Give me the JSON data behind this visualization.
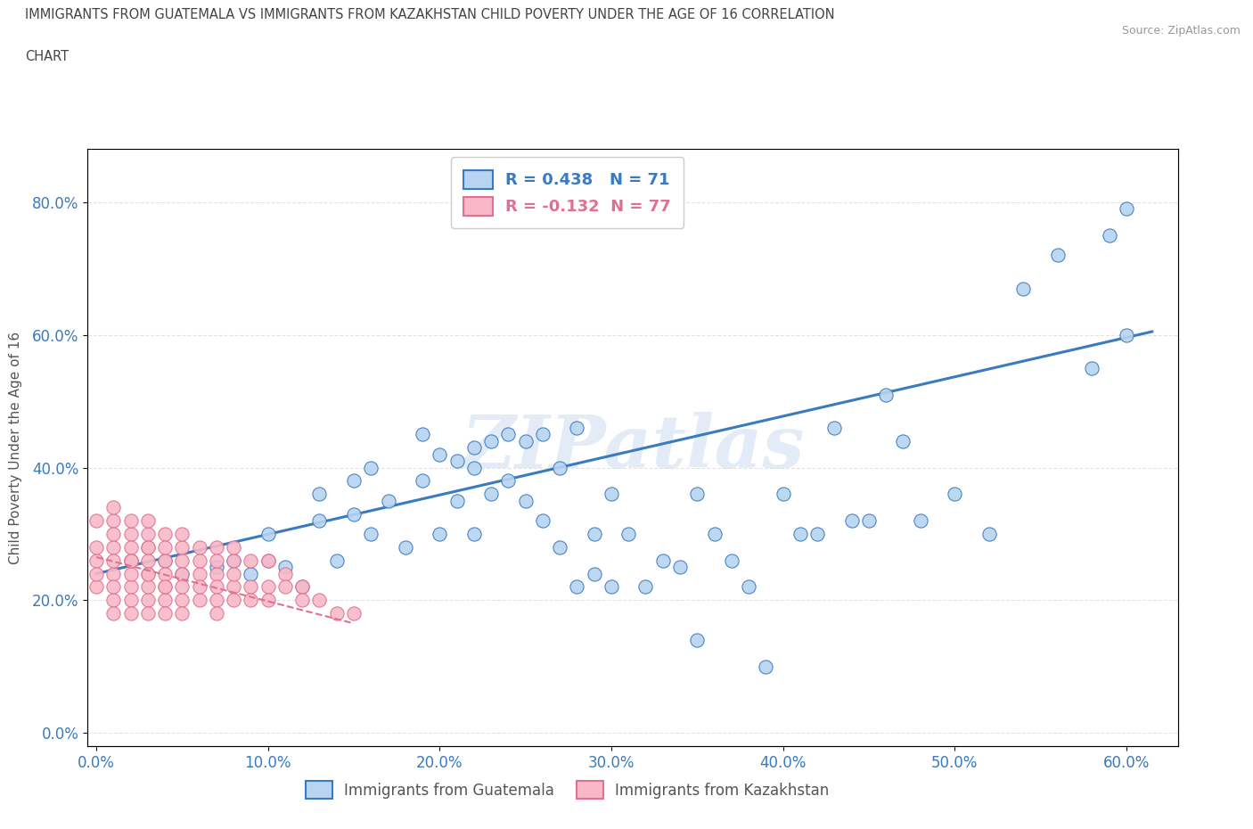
{
  "title_line1": "IMMIGRANTS FROM GUATEMALA VS IMMIGRANTS FROM KAZAKHSTAN CHILD POVERTY UNDER THE AGE OF 16 CORRELATION",
  "title_line2": "CHART",
  "source_text": "Source: ZipAtlas.com",
  "xlabel_blue": "Immigrants from Guatemala",
  "xlabel_pink": "Immigrants from Kazakhstan",
  "ylabel": "Child Poverty Under the Age of 16",
  "R_blue": 0.438,
  "N_blue": 71,
  "R_pink": -0.132,
  "N_pink": 77,
  "color_blue": "#b8d4f0",
  "color_pink": "#f8b8c8",
  "color_line_blue": "#3a7abf",
  "color_line_pink": "#e07090",
  "watermark": "ZIPatlas",
  "xlim": [
    -0.005,
    0.63
  ],
  "ylim": [
    -0.02,
    0.88
  ],
  "xticks": [
    0.0,
    0.1,
    0.2,
    0.3,
    0.4,
    0.5,
    0.6
  ],
  "yticks": [
    0.0,
    0.2,
    0.4,
    0.6,
    0.8
  ],
  "blue_scatter_x": [
    0.02,
    0.04,
    0.05,
    0.07,
    0.08,
    0.09,
    0.1,
    0.1,
    0.11,
    0.12,
    0.13,
    0.13,
    0.14,
    0.15,
    0.15,
    0.16,
    0.16,
    0.17,
    0.18,
    0.19,
    0.19,
    0.2,
    0.2,
    0.21,
    0.21,
    0.22,
    0.22,
    0.22,
    0.23,
    0.23,
    0.24,
    0.24,
    0.25,
    0.25,
    0.26,
    0.26,
    0.27,
    0.27,
    0.28,
    0.28,
    0.29,
    0.29,
    0.3,
    0.3,
    0.31,
    0.32,
    0.33,
    0.34,
    0.35,
    0.35,
    0.36,
    0.37,
    0.38,
    0.39,
    0.4,
    0.41,
    0.42,
    0.43,
    0.44,
    0.45,
    0.46,
    0.47,
    0.48,
    0.5,
    0.52,
    0.54,
    0.56,
    0.58,
    0.59,
    0.6,
    0.6
  ],
  "blue_scatter_y": [
    0.26,
    0.26,
    0.24,
    0.25,
    0.26,
    0.24,
    0.3,
    0.26,
    0.25,
    0.22,
    0.32,
    0.36,
    0.26,
    0.33,
    0.38,
    0.4,
    0.3,
    0.35,
    0.28,
    0.38,
    0.45,
    0.3,
    0.42,
    0.35,
    0.41,
    0.4,
    0.43,
    0.3,
    0.44,
    0.36,
    0.45,
    0.38,
    0.35,
    0.44,
    0.32,
    0.45,
    0.4,
    0.28,
    0.22,
    0.46,
    0.24,
    0.3,
    0.22,
    0.36,
    0.3,
    0.22,
    0.26,
    0.25,
    0.14,
    0.36,
    0.3,
    0.26,
    0.22,
    0.1,
    0.36,
    0.3,
    0.3,
    0.46,
    0.32,
    0.32,
    0.51,
    0.44,
    0.32,
    0.36,
    0.3,
    0.67,
    0.72,
    0.55,
    0.75,
    0.6,
    0.79
  ],
  "pink_scatter_x": [
    0.0,
    0.0,
    0.0,
    0.0,
    0.0,
    0.01,
    0.01,
    0.01,
    0.01,
    0.01,
    0.01,
    0.01,
    0.01,
    0.01,
    0.02,
    0.02,
    0.02,
    0.02,
    0.02,
    0.02,
    0.02,
    0.02,
    0.02,
    0.03,
    0.03,
    0.03,
    0.03,
    0.03,
    0.03,
    0.03,
    0.03,
    0.03,
    0.03,
    0.04,
    0.04,
    0.04,
    0.04,
    0.04,
    0.04,
    0.04,
    0.04,
    0.05,
    0.05,
    0.05,
    0.05,
    0.05,
    0.05,
    0.05,
    0.06,
    0.06,
    0.06,
    0.06,
    0.06,
    0.07,
    0.07,
    0.07,
    0.07,
    0.07,
    0.07,
    0.08,
    0.08,
    0.08,
    0.08,
    0.08,
    0.09,
    0.09,
    0.09,
    0.1,
    0.1,
    0.1,
    0.11,
    0.11,
    0.12,
    0.12,
    0.13,
    0.14,
    0.15
  ],
  "pink_scatter_y": [
    0.22,
    0.26,
    0.28,
    0.32,
    0.24,
    0.2,
    0.24,
    0.28,
    0.32,
    0.26,
    0.3,
    0.22,
    0.18,
    0.34,
    0.22,
    0.26,
    0.3,
    0.24,
    0.28,
    0.2,
    0.32,
    0.18,
    0.26,
    0.24,
    0.28,
    0.2,
    0.3,
    0.22,
    0.26,
    0.18,
    0.32,
    0.24,
    0.28,
    0.2,
    0.26,
    0.22,
    0.3,
    0.24,
    0.18,
    0.28,
    0.22,
    0.26,
    0.2,
    0.28,
    0.24,
    0.22,
    0.3,
    0.18,
    0.28,
    0.24,
    0.2,
    0.26,
    0.22,
    0.24,
    0.28,
    0.22,
    0.2,
    0.26,
    0.18,
    0.26,
    0.22,
    0.2,
    0.28,
    0.24,
    0.22,
    0.26,
    0.2,
    0.22,
    0.26,
    0.2,
    0.24,
    0.22,
    0.22,
    0.2,
    0.2,
    0.18,
    0.18
  ],
  "blue_trend_x": [
    0.0,
    0.615
  ],
  "blue_trend_y": [
    0.24,
    0.605
  ],
  "pink_trend_x": [
    0.0,
    0.15
  ],
  "pink_trend_y": [
    0.265,
    0.165
  ],
  "background_color": "#ffffff",
  "title_color": "#444444",
  "axis_color": "#cccccc",
  "tick_label_color_blue": "#3a7abf",
  "tick_label_color_bottom": "#3a7abf",
  "grid_color": "#dddddd",
  "grid_style": "--"
}
